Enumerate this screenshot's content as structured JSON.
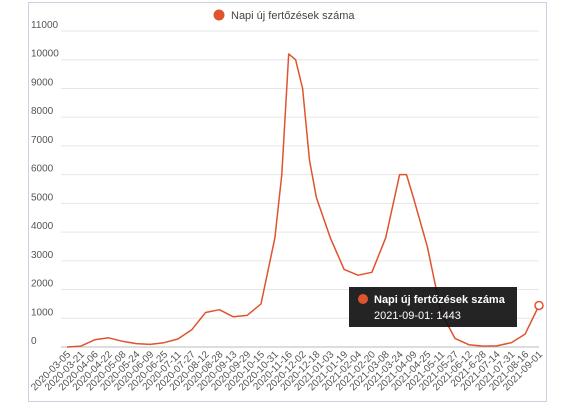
{
  "chart_data": {
    "type": "line",
    "title": "",
    "xlabel": "",
    "ylabel": "",
    "series": [
      {
        "name": "Napi új fertőzések száma",
        "color": "#e0532f",
        "points": [
          [
            "2020-03-05",
            0
          ],
          [
            "2020-03-21",
            30
          ],
          [
            "2020-04-06",
            250
          ],
          [
            "2020-04-22",
            320
          ],
          [
            "2020-05-08",
            200
          ],
          [
            "2020-05-24",
            120
          ],
          [
            "2020-06-09",
            90
          ],
          [
            "2020-06-25",
            150
          ],
          [
            "2020-07-11",
            280
          ],
          [
            "2020-07-27",
            600
          ],
          [
            "2020-08-12",
            1200
          ],
          [
            "2020-08-28",
            1300
          ],
          [
            "2020-09-13",
            1050
          ],
          [
            "2020-09-29",
            1100
          ],
          [
            "2020-10-15",
            1500
          ],
          [
            "2020-10-31",
            3800
          ],
          [
            "2020-11-08",
            6000
          ],
          [
            "2020-11-16",
            10200
          ],
          [
            "2020-11-24",
            10000
          ],
          [
            "2020-12-02",
            9000
          ],
          [
            "2020-12-10",
            6500
          ],
          [
            "2020-12-18",
            5200
          ],
          [
            "2021-01-03",
            3800
          ],
          [
            "2021-01-19",
            2700
          ],
          [
            "2021-02-04",
            2500
          ],
          [
            "2021-02-20",
            2600
          ],
          [
            "2021-03-08",
            3800
          ],
          [
            "2021-03-24",
            6000
          ],
          [
            "2021-04-01",
            6000
          ],
          [
            "2021-04-09",
            5200
          ],
          [
            "2021-04-25",
            3500
          ],
          [
            "2021-05-11",
            1200
          ],
          [
            "2021-05-27",
            300
          ],
          [
            "2021-06-12",
            80
          ],
          [
            "2021-06-28",
            30
          ],
          [
            "2021-07-14",
            40
          ],
          [
            "2021-07-31",
            150
          ],
          [
            "2021-08-16",
            450
          ],
          [
            "2021-09-01",
            1443
          ]
        ]
      }
    ],
    "x_ticks": [
      "2020-03-05",
      "2020-03-21",
      "2020-04-06",
      "2020-04-22",
      "2020-05-08",
      "2020-05-24",
      "2020-06-09",
      "2020-06-25",
      "2020-07-11",
      "2020-07-27",
      "2020-08-12",
      "2020-08-28",
      "2020-09-13",
      "2020-09-29",
      "2020-10-15",
      "2020-10-31",
      "2020-11-16",
      "2020-12-02",
      "2020-12-18",
      "2021-01-03",
      "2021-01-19",
      "2021-02-04",
      "2021-02-20",
      "2021-03-08",
      "2021-03-24",
      "2021-04-09",
      "2021-04-25",
      "2021-05-11",
      "2021-05-27",
      "2021-06-12",
      "2021-6-28",
      "2021-07-14",
      "2021-07-31",
      "2021-08-16",
      "2021-09-01"
    ],
    "y_ticks": [
      "0",
      "1000",
      "2000",
      "3000",
      "4000",
      "5000",
      "6000",
      "7000",
      "8000",
      "9000",
      "10000",
      "11000"
    ],
    "ylim": [
      0,
      11000
    ],
    "xlim": [
      "2020-03-05",
      "2021-09-01"
    ],
    "grid": true,
    "legend_position": "top-center",
    "tooltip": {
      "title": "Napi új fertőzések száma",
      "text": "2021-09-01: 1443"
    }
  }
}
